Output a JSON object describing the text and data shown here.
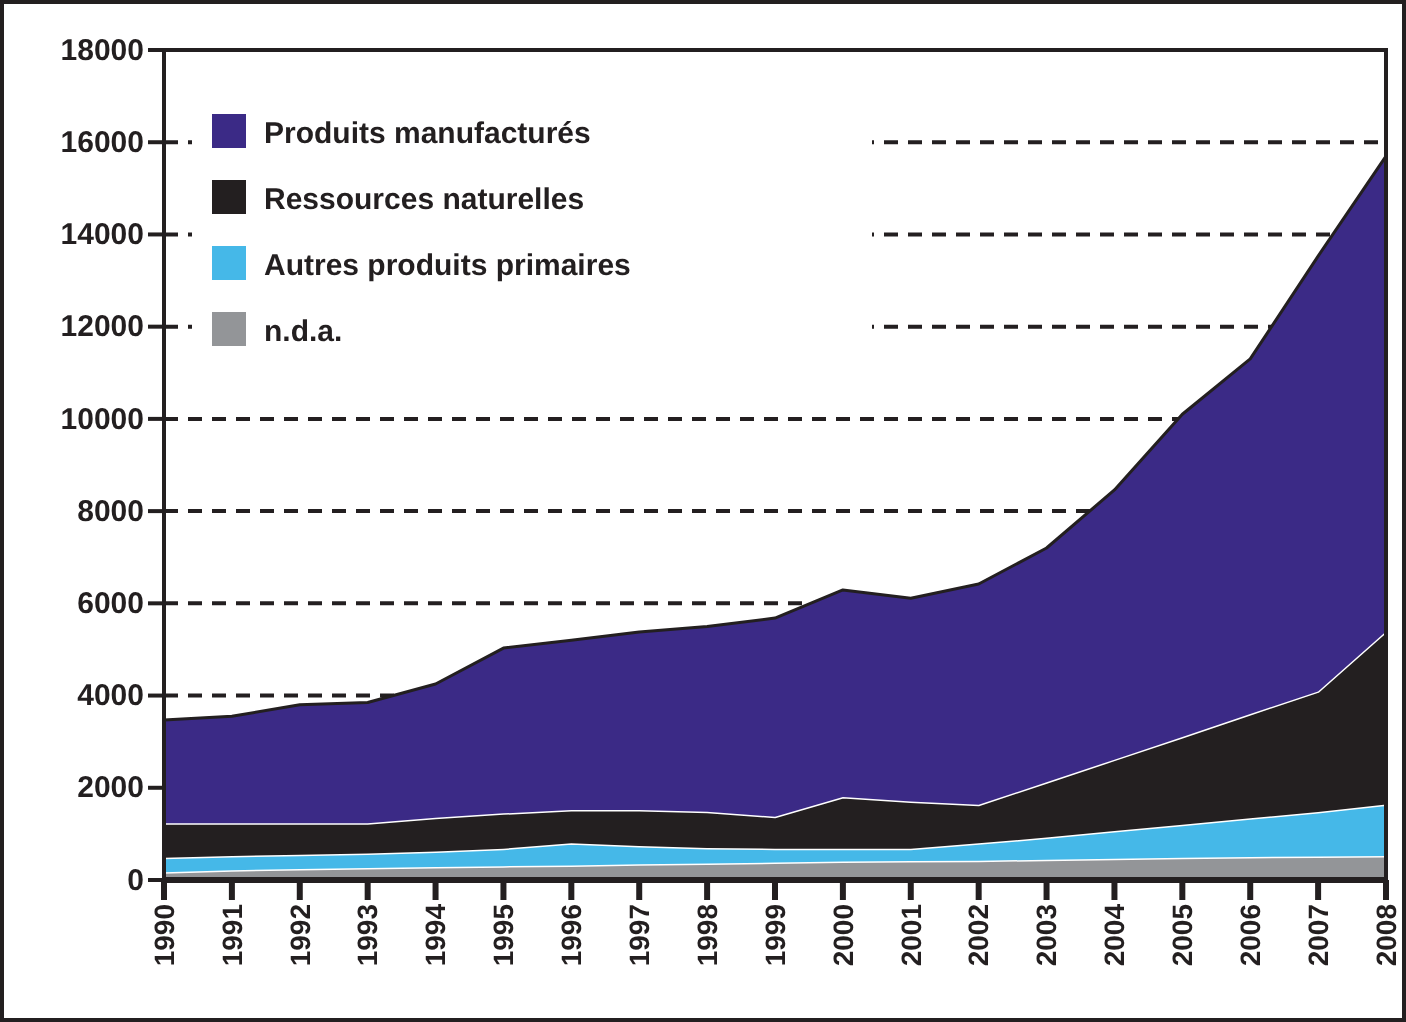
{
  "chart_data": {
    "type": "area",
    "stacked": true,
    "grid": "y",
    "legend": "top left",
    "x": [
      1990,
      1991,
      1992,
      1993,
      1994,
      1995,
      1996,
      1997,
      1998,
      1999,
      2000,
      2001,
      2002,
      2003,
      2004,
      2005,
      2006,
      2007,
      2008
    ],
    "xlim": [
      1990,
      2008
    ],
    "xticks": [
      1990,
      1991,
      1992,
      1993,
      1994,
      1995,
      1996,
      1997,
      1998,
      1999,
      2000,
      2001,
      2002,
      2003,
      2004,
      2005,
      2006,
      2007,
      2008
    ],
    "ylim": [
      0,
      18000
    ],
    "yticks": [
      0,
      2000,
      4000,
      6000,
      8000,
      10000,
      12000,
      14000,
      16000,
      18000
    ],
    "series": [
      {
        "name": "n.d.a.",
        "color": "#939598",
        "values": [
          170,
          210,
          240,
          260,
          280,
          300,
          317,
          340,
          360,
          380,
          400,
          410,
          420,
          440,
          460,
          480,
          500,
          510,
          520
        ]
      },
      {
        "name": "Autres produits primaires",
        "color": "#45b8e8",
        "values": [
          310,
          310,
          310,
          317,
          340,
          380,
          478,
          400,
          334,
          300,
          280,
          270,
          375,
          480,
          600,
          720,
          840,
          965,
          1115
        ]
      },
      {
        "name": "Ressources naturelles",
        "color": "#231f20",
        "values": [
          750,
          710,
          680,
          653,
          730,
          765,
          725,
          780,
          786,
          690,
          1120,
          1020,
          835,
          1200,
          1550,
          1900,
          2260,
          2615,
          3755
        ]
      },
      {
        "name": "Produits manufacturés",
        "color": "#3b2a86",
        "values": [
          2240,
          2320,
          2570,
          2620,
          2900,
          3585,
          3680,
          3860,
          4020,
          4310,
          4490,
          4410,
          4790,
          5080,
          5850,
          7000,
          7700,
          9440,
          10310
        ]
      }
    ]
  }
}
